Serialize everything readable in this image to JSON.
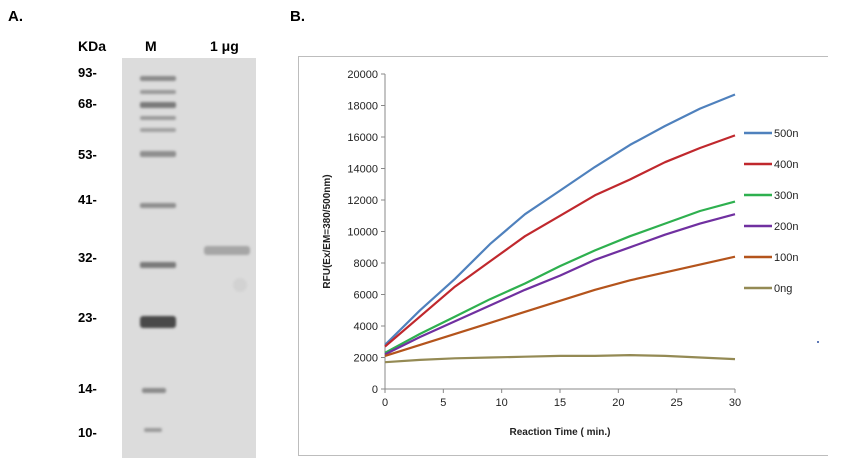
{
  "panel_a": {
    "label": "A.",
    "kda_label": "KDa",
    "marker_label": "M",
    "sample_label": "1 μg",
    "mw_markers": [
      "93-",
      "68-",
      "53-",
      "41-",
      "32-",
      "23-",
      "14-",
      "10-"
    ]
  },
  "panel_b": {
    "label": "B."
  },
  "chart_data": {
    "type": "line",
    "title": "",
    "xlabel": "Reaction Time ( min.)",
    "ylabel": "RFU(Ex/EM=380/500nm)",
    "xlim": [
      0,
      30
    ],
    "ylim": [
      0,
      20000
    ],
    "xticks": [
      0,
      5,
      10,
      15,
      20,
      25,
      30
    ],
    "yticks": [
      0,
      2000,
      4000,
      6000,
      8000,
      10000,
      12000,
      14000,
      16000,
      18000,
      20000
    ],
    "grid": false,
    "legend_position": "right",
    "x": [
      0,
      3,
      6,
      9,
      12,
      15,
      18,
      21,
      24,
      27,
      30
    ],
    "series": [
      {
        "name": "500n",
        "color": "#4f81bd",
        "values": [
          2800,
          5000,
          7000,
          9200,
          11100,
          12600,
          14100,
          15500,
          16700,
          17800,
          18700
        ]
      },
      {
        "name": "400n",
        "color": "#c0282d",
        "values": [
          2700,
          4600,
          6500,
          8100,
          9700,
          11000,
          12300,
          13300,
          14400,
          15300,
          16100
        ]
      },
      {
        "name": "300n",
        "color": "#2eb04f",
        "values": [
          2300,
          3500,
          4600,
          5700,
          6700,
          7800,
          8800,
          9700,
          10500,
          11300,
          11900
        ]
      },
      {
        "name": "200n",
        "color": "#7030a0",
        "values": [
          2200,
          3300,
          4300,
          5300,
          6300,
          7200,
          8200,
          9000,
          9800,
          10500,
          11100
        ]
      },
      {
        "name": "100n",
        "color": "#b4541c",
        "values": [
          2100,
          2800,
          3500,
          4200,
          4900,
          5600,
          6300,
          6900,
          7400,
          7900,
          8400
        ]
      },
      {
        "name": "0ng",
        "color": "#948a54",
        "values": [
          1700,
          1850,
          1950,
          2000,
          2050,
          2100,
          2100,
          2150,
          2100,
          2000,
          1900
        ]
      }
    ]
  }
}
